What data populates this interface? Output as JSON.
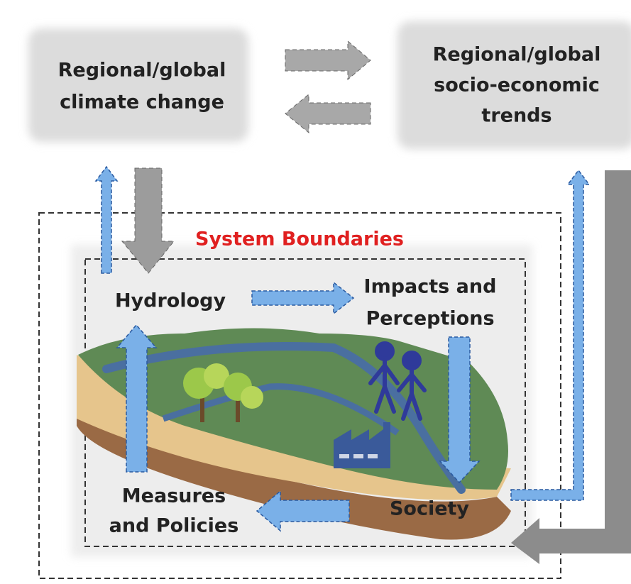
{
  "nodes": [
    {
      "id": "climate",
      "lines": [
        "Regional/global",
        "climate change"
      ]
    },
    {
      "id": "socio",
      "lines": [
        "Regional/global",
        "socio-economic",
        "trends"
      ]
    },
    {
      "id": "boundary",
      "lines": [
        "System Boundaries"
      ]
    },
    {
      "id": "hydrology",
      "lines": [
        "Hydrology"
      ]
    },
    {
      "id": "impacts",
      "lines": [
        "Impacts and",
        "Perceptions"
      ]
    },
    {
      "id": "measures",
      "lines": [
        "Measures",
        "and Policies"
      ]
    },
    {
      "id": "society",
      "lines": [
        "Society"
      ]
    }
  ]
}
